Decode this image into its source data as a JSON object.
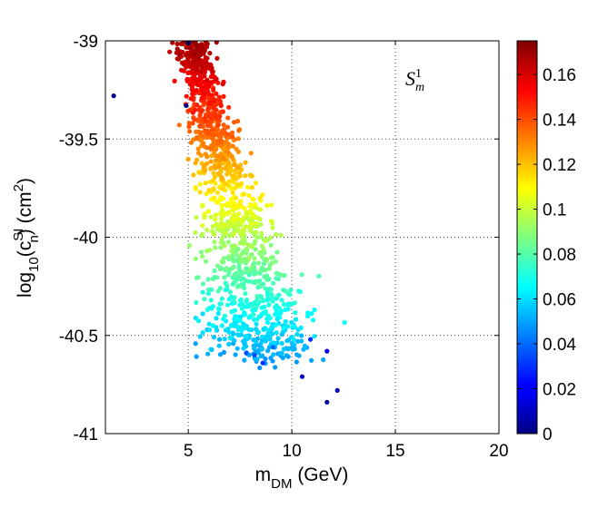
{
  "chart_data": {
    "type": "scatter",
    "title": "",
    "annotation": {
      "base": "S",
      "sup": "1",
      "sub": "m"
    },
    "xlabel": {
      "main": "m",
      "sub": "DM",
      "rest": " (GeV)"
    },
    "ylabel": {
      "pre": "log",
      "sub1": "10",
      "mid": "(c",
      "sup": "SI",
      "sub2": "n",
      "post": ") (cm",
      "sup2": "2",
      "end": ")"
    },
    "xlim": [
      1,
      20
    ],
    "ylim": [
      -41,
      -39
    ],
    "xticks": [
      5,
      10,
      15,
      20
    ],
    "xtick_labels": [
      "5",
      "10",
      "15",
      "20"
    ],
    "yticks": [
      -39,
      -39.5,
      -40,
      -40.5,
      -41
    ],
    "ytick_labels": [
      "-39",
      "-39.5",
      "-40",
      "-40.5",
      "-41"
    ],
    "grid": true,
    "colorbar": {
      "min": 0,
      "max": 0.175,
      "ticks": [
        0,
        0.02,
        0.04,
        0.06,
        0.08,
        0.1,
        0.12,
        0.14,
        0.16
      ],
      "tick_labels": [
        "0",
        "0.02",
        "0.04",
        "0.06",
        "0.08",
        "0.1",
        "0.12",
        "0.14",
        "0.16"
      ],
      "colormap": "jet"
    },
    "points": [
      {
        "x": 1.4,
        "y": -39.28,
        "c": 0.0
      },
      {
        "x": 4.9,
        "y": -39.33,
        "c": 0.0
      },
      {
        "x": 5.0,
        "y": -39.01,
        "c": 0.0
      },
      {
        "x": 11.7,
        "y": -40.84,
        "c": 0.005
      },
      {
        "x": 12.2,
        "y": -40.78,
        "c": 0.01
      },
      {
        "x": 10.5,
        "y": -40.71,
        "c": 0.012
      },
      {
        "x": 11.7,
        "y": -40.58,
        "c": 0.018
      },
      {
        "x": 8.6,
        "y": -40.64,
        "c": 0.03
      },
      {
        "x": 10.9,
        "y": -40.52,
        "c": 0.03
      },
      {
        "x": 7.8,
        "y": -40.59,
        "c": 0.035
      },
      {
        "x": 8.2,
        "y": -40.6,
        "c": 0.035
      },
      {
        "x": 9.1,
        "y": -40.56,
        "c": 0.04
      },
      {
        "x": 5.7,
        "y": -40.39,
        "c": 0.06
      },
      {
        "x": 5.3,
        "y": -39.07,
        "c": 0.17
      },
      {
        "x": 5.6,
        "y": -39.02,
        "c": 0.17
      },
      {
        "x": 5.8,
        "y": -39.05,
        "c": 0.168
      },
      {
        "x": 5.4,
        "y": -39.14,
        "c": 0.165
      },
      {
        "x": 5.9,
        "y": -39.2,
        "c": 0.16
      },
      {
        "x": 5.2,
        "y": -39.27,
        "c": 0.155
      },
      {
        "x": 6.1,
        "y": -39.32,
        "c": 0.15
      }
    ],
    "generated_cloud": {
      "count": 1350,
      "note": "dense band of points reproduced procedurally along the x-y trend"
    }
  }
}
